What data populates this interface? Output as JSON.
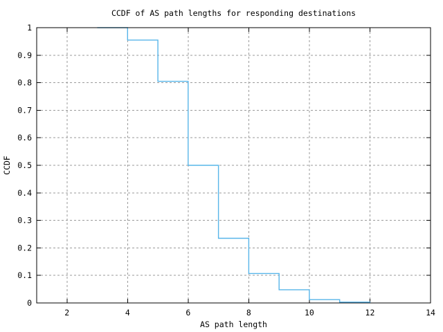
{
  "chart_data": {
    "type": "line",
    "subtype": "step-post",
    "title": "CCDF of AS path lengths for responding destinations",
    "xlabel": "AS path length",
    "ylabel": "CCDF",
    "xlim": [
      1,
      14
    ],
    "ylim": [
      0,
      1
    ],
    "xticks": [
      2,
      4,
      6,
      8,
      10,
      12,
      14
    ],
    "xtick_labels": [
      "2",
      "4",
      "6",
      "8",
      "10",
      "12",
      "14"
    ],
    "yticks": [
      0,
      0.1,
      0.2,
      0.3,
      0.4,
      0.5,
      0.6,
      0.7,
      0.8,
      0.9,
      1
    ],
    "ytick_labels": [
      "0",
      "0.1",
      "0.2",
      "0.3",
      "0.4",
      "0.5",
      "0.6",
      "0.7",
      "0.8",
      "0.9",
      "1"
    ],
    "grid": true,
    "legend": "none",
    "series": [
      {
        "name": "CCDF of AS path length",
        "points": [
          [
            3,
            1.0
          ],
          [
            4,
            0.955
          ],
          [
            5,
            0.805
          ],
          [
            6,
            0.5
          ],
          [
            7,
            0.235
          ],
          [
            8,
            0.107
          ],
          [
            9,
            0.048
          ],
          [
            10,
            0.012
          ],
          [
            11,
            0.003
          ],
          [
            12,
            0.0
          ]
        ]
      }
    ],
    "colors": {
      "line": "#57b5e9",
      "grid": "#9a9a9a",
      "border": "#000000",
      "background": "#ffffff",
      "text": "#000000"
    }
  }
}
